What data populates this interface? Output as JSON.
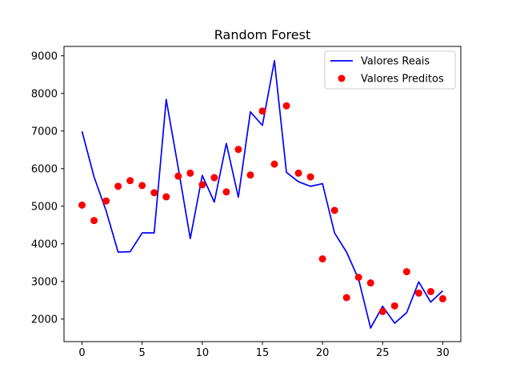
{
  "chart_data": {
    "type": "line",
    "title": "Random Forest",
    "xlabel": "",
    "ylabel": "",
    "xlim": [
      -1.5,
      31.5
    ],
    "ylim": [
      1400,
      9250
    ],
    "xticks": [
      0,
      5,
      10,
      15,
      20,
      25,
      30
    ],
    "yticks": [
      2000,
      3000,
      4000,
      5000,
      6000,
      7000,
      8000,
      9000
    ],
    "grid": false,
    "legend_position": "top-right",
    "series": [
      {
        "name": "Valores Reais",
        "kind": "line",
        "color": "#0000ff",
        "x": [
          0,
          1,
          2,
          3,
          4,
          5,
          6,
          7,
          8,
          9,
          10,
          11,
          12,
          13,
          14,
          15,
          16,
          17,
          18,
          19,
          20,
          21,
          22,
          23,
          24,
          25,
          26,
          27,
          28,
          29,
          30
        ],
        "y": [
          6990,
          5780,
          4880,
          3780,
          3790,
          4290,
          4290,
          7840,
          6020,
          4140,
          5820,
          5110,
          6670,
          5240,
          7510,
          7150,
          8870,
          5900,
          5650,
          5530,
          5600,
          4290,
          3780,
          3060,
          1760,
          2340,
          1890,
          2170,
          2990,
          2450,
          2750
        ]
      },
      {
        "name": "Valores Preditos",
        "kind": "scatter",
        "color": "#ff0000",
        "x": [
          0,
          1,
          2,
          3,
          4,
          5,
          6,
          7,
          8,
          9,
          10,
          11,
          12,
          13,
          14,
          15,
          16,
          17,
          18,
          19,
          20,
          21,
          22,
          23,
          24,
          25,
          26,
          27,
          28,
          29,
          30
        ],
        "y": [
          5030,
          4620,
          5140,
          5530,
          5680,
          5550,
          5360,
          5250,
          5800,
          5880,
          5570,
          5760,
          5380,
          6510,
          5830,
          7530,
          6120,
          7670,
          5880,
          5780,
          3600,
          4890,
          2570,
          3110,
          2960,
          2200,
          2350,
          3260,
          2690,
          2730,
          2540
        ]
      }
    ]
  }
}
